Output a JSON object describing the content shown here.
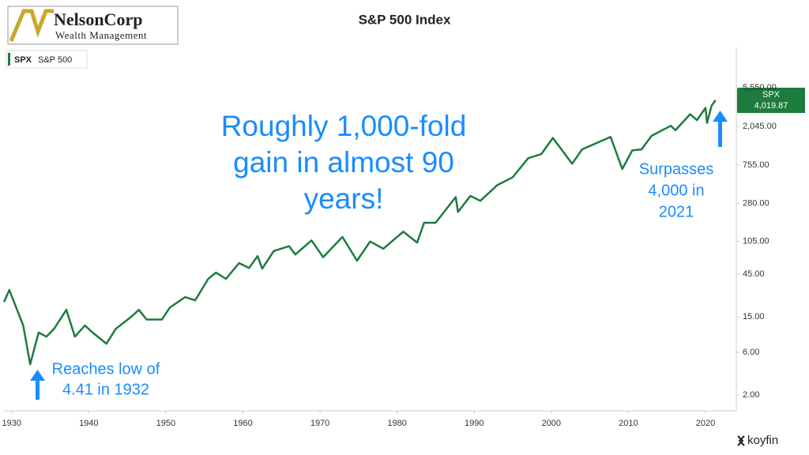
{
  "chart_data": {
    "type": "line",
    "title": "S&P 500 Index",
    "logo": {
      "name": "NelsonCorp",
      "tagline": "Wealth Management"
    },
    "legend": {
      "ticker": "SPX",
      "label": "S&P 500"
    },
    "price_tag": {
      "ticker": "SPX",
      "last_label": "4,019.87"
    },
    "source": "koyfin",
    "annotations": [
      {
        "lines": [
          "Roughly 1,000-fold",
          "gain in almost 90",
          "years!"
        ]
      },
      {
        "lines": [
          "Reaches low of",
          "4.41 in 1932"
        ]
      },
      {
        "lines": [
          "Surpasses",
          "4,000 in",
          "2021"
        ]
      }
    ],
    "log_scale": true,
    "xlim": [
      1929,
      2024
    ],
    "xticks": [
      1930,
      1940,
      1950,
      1960,
      1970,
      1980,
      1990,
      2000,
      2010,
      2020
    ],
    "ylim": [
      1.33,
      15700
    ],
    "yticks": [
      {
        "value": 2,
        "label": "2.00"
      },
      {
        "value": 6,
        "label": "6.00"
      },
      {
        "value": 15,
        "label": "15.00"
      },
      {
        "value": 45,
        "label": "45.00"
      },
      {
        "value": 105,
        "label": "105.00"
      },
      {
        "value": 280,
        "label": "280.00"
      },
      {
        "value": 755,
        "label": "755.00"
      },
      {
        "value": 2045,
        "label": "2,045.00"
      },
      {
        "value": 5550,
        "label": "5,550.00"
      }
    ],
    "x": [
      1929.0,
      1929.7,
      1930.5,
      1931.5,
      1932.4,
      1933.5,
      1934.5,
      1935.5,
      1937.1,
      1938.2,
      1939.5,
      1940.5,
      1942.3,
      1943.5,
      1945.5,
      1946.5,
      1947.5,
      1949.5,
      1950.5,
      1952.5,
      1953.8,
      1955.5,
      1956.5,
      1957.8,
      1959.5,
      1960.8,
      1961.9,
      1962.5,
      1964.0,
      1966.0,
      1966.8,
      1968.9,
      1970.4,
      1972.9,
      1974.8,
      1976.5,
      1978.2,
      1980.8,
      1982.6,
      1983.5,
      1985.0,
      1987.6,
      1987.9,
      1989.5,
      1990.8,
      1993.0,
      1995.0,
      1997.0,
      1998.7,
      2000.2,
      2002.7,
      2004.0,
      2007.7,
      2009.2,
      2010.5,
      2011.7,
      2013.0,
      2015.5,
      2016.1,
      2018.0,
      2018.9,
      2020.0,
      2020.2,
      2020.8,
      2021.3
    ],
    "series": [
      {
        "name": "SPX",
        "color": "#1e7b3e",
        "values": [
          22,
          30,
          20,
          12,
          4.41,
          10,
          9,
          11,
          18,
          9,
          12,
          10,
          7.5,
          11,
          15,
          18,
          14,
          14,
          19,
          25,
          23,
          40,
          47,
          40,
          60,
          53,
          72,
          52,
          82,
          93,
          75,
          108,
          70,
          118,
          64,
          105,
          87,
          135,
          102,
          170,
          170,
          330,
          225,
          340,
          300,
          450,
          550,
          900,
          1000,
          1520,
          780,
          1130,
          1560,
          680,
          1100,
          1130,
          1600,
          2080,
          1850,
          2800,
          2400,
          3300,
          2240,
          3500,
          4019.87
        ]
      }
    ]
  }
}
